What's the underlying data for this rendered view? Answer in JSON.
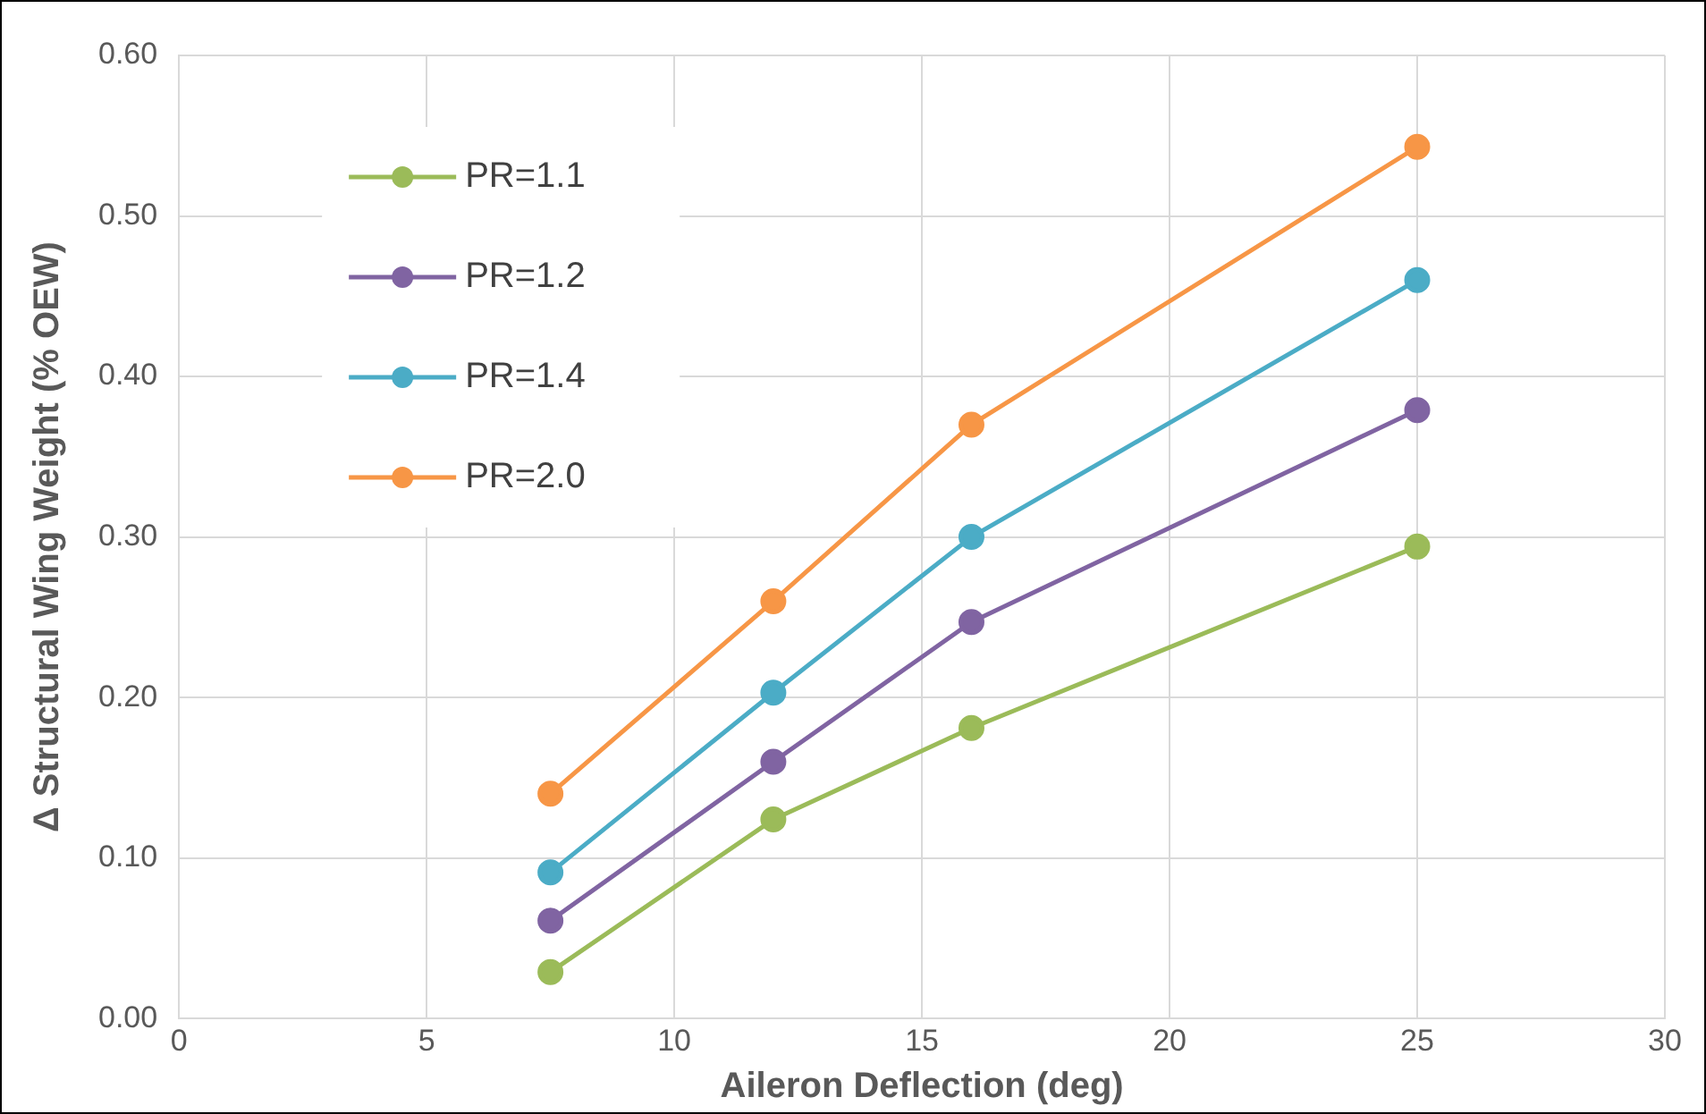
{
  "chart_data": {
    "type": "line",
    "xlabel": "Aileron Deflection (deg)",
    "ylabel": "Δ Structural Wing Weight (% OEW)",
    "x": [
      7.5,
      12,
      16,
      25
    ],
    "series": [
      {
        "name": "PR=1.1",
        "color": "#9bbb59",
        "values": [
          0.029,
          0.124,
          0.181,
          0.294
        ]
      },
      {
        "name": "PR=1.2",
        "color": "#8064a2",
        "values": [
          0.061,
          0.16,
          0.247,
          0.379
        ]
      },
      {
        "name": "PR=1.4",
        "color": "#4bacc6",
        "values": [
          0.091,
          0.203,
          0.3,
          0.46
        ]
      },
      {
        "name": "PR=2.0",
        "color": "#f79646",
        "values": [
          0.14,
          0.26,
          0.37,
          0.543
        ]
      }
    ],
    "xlim": [
      0,
      30
    ],
    "xticks": [
      0,
      5,
      10,
      15,
      20,
      25,
      30
    ],
    "ylim": [
      0,
      0.6
    ],
    "yticks": [
      {
        "value": 0,
        "label": "0.00"
      },
      {
        "value": 0.1,
        "label": "0.10"
      },
      {
        "value": 0.2,
        "label": "0.20"
      },
      {
        "value": 0.3,
        "label": "0.30"
      },
      {
        "value": 0.4,
        "label": "0.40"
      },
      {
        "value": 0.5,
        "label": "0.50"
      },
      {
        "value": 0.6,
        "label": "0.60"
      }
    ],
    "grid": true,
    "legend": "top left",
    "marker": "circle",
    "line_style": "solid"
  }
}
